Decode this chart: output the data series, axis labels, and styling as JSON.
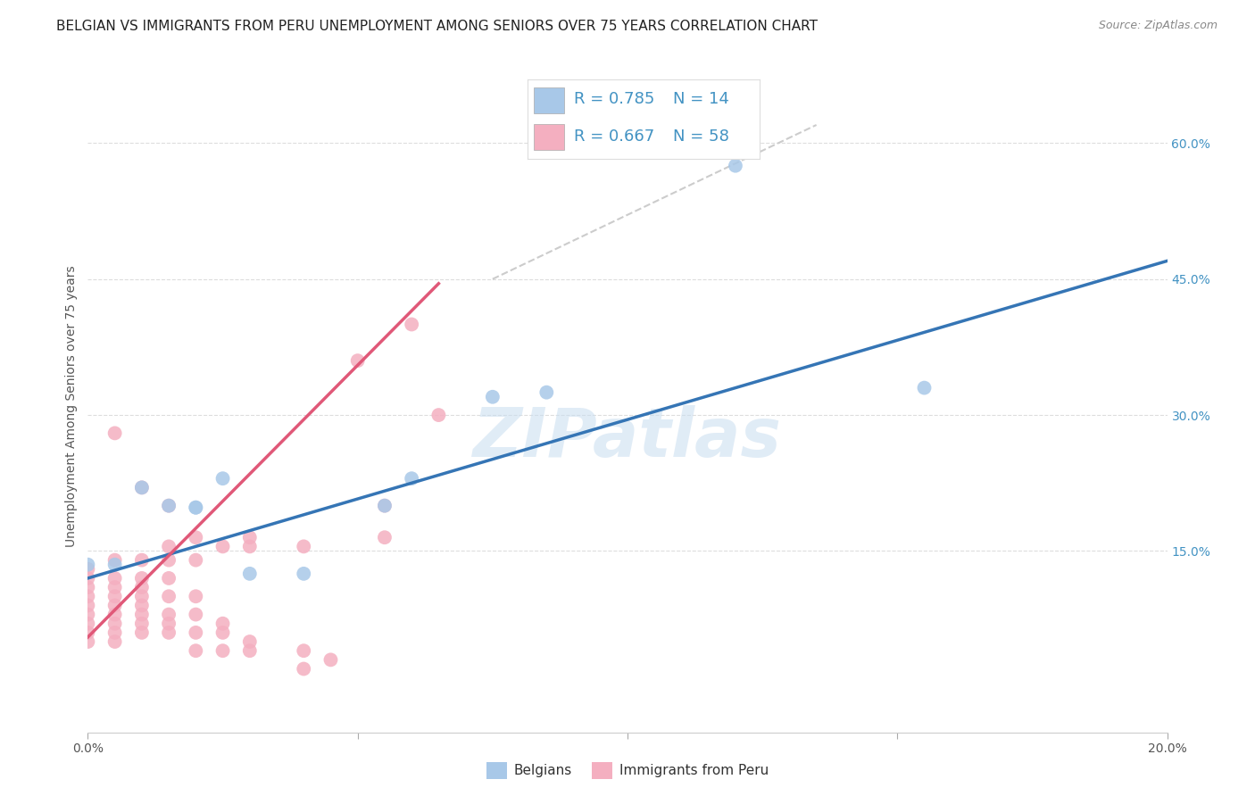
{
  "title": "BELGIAN VS IMMIGRANTS FROM PERU UNEMPLOYMENT AMONG SENIORS OVER 75 YEARS CORRELATION CHART",
  "source": "Source: ZipAtlas.com",
  "ylabel": "Unemployment Among Seniors over 75 years",
  "xlim": [
    0.0,
    0.2
  ],
  "ylim": [
    -0.05,
    0.67
  ],
  "yticks_right": [
    0.15,
    0.3,
    0.45,
    0.6
  ],
  "ytick_labels_right": [
    "15.0%",
    "30.0%",
    "45.0%",
    "60.0%"
  ],
  "blue_color": "#a8c8e8",
  "pink_color": "#f4afc0",
  "blue_line_color": "#3575b5",
  "pink_line_color": "#e05878",
  "diag_color": "#cccccc",
  "legend_color": "#4393c3",
  "blue_scatter": [
    [
      0.0,
      0.135
    ],
    [
      0.005,
      0.135
    ],
    [
      0.01,
      0.22
    ],
    [
      0.015,
      0.2
    ],
    [
      0.02,
      0.198
    ],
    [
      0.02,
      0.198
    ],
    [
      0.025,
      0.23
    ],
    [
      0.03,
      0.125
    ],
    [
      0.04,
      0.125
    ],
    [
      0.055,
      0.2
    ],
    [
      0.06,
      0.23
    ],
    [
      0.075,
      0.32
    ],
    [
      0.085,
      0.325
    ],
    [
      0.12,
      0.575
    ],
    [
      0.155,
      0.33
    ]
  ],
  "pink_scatter": [
    [
      0.0,
      0.05
    ],
    [
      0.0,
      0.06
    ],
    [
      0.0,
      0.07
    ],
    [
      0.0,
      0.08
    ],
    [
      0.0,
      0.09
    ],
    [
      0.0,
      0.1
    ],
    [
      0.0,
      0.11
    ],
    [
      0.0,
      0.12
    ],
    [
      0.0,
      0.13
    ],
    [
      0.005,
      0.05
    ],
    [
      0.005,
      0.06
    ],
    [
      0.005,
      0.07
    ],
    [
      0.005,
      0.08
    ],
    [
      0.005,
      0.09
    ],
    [
      0.005,
      0.1
    ],
    [
      0.005,
      0.11
    ],
    [
      0.005,
      0.12
    ],
    [
      0.005,
      0.14
    ],
    [
      0.005,
      0.28
    ],
    [
      0.01,
      0.06
    ],
    [
      0.01,
      0.07
    ],
    [
      0.01,
      0.08
    ],
    [
      0.01,
      0.09
    ],
    [
      0.01,
      0.1
    ],
    [
      0.01,
      0.11
    ],
    [
      0.01,
      0.12
    ],
    [
      0.01,
      0.14
    ],
    [
      0.01,
      0.22
    ],
    [
      0.015,
      0.06
    ],
    [
      0.015,
      0.07
    ],
    [
      0.015,
      0.08
    ],
    [
      0.015,
      0.1
    ],
    [
      0.015,
      0.12
    ],
    [
      0.015,
      0.14
    ],
    [
      0.015,
      0.155
    ],
    [
      0.015,
      0.2
    ],
    [
      0.02,
      0.04
    ],
    [
      0.02,
      0.06
    ],
    [
      0.02,
      0.08
    ],
    [
      0.02,
      0.1
    ],
    [
      0.02,
      0.14
    ],
    [
      0.02,
      0.165
    ],
    [
      0.025,
      0.04
    ],
    [
      0.025,
      0.06
    ],
    [
      0.025,
      0.07
    ],
    [
      0.025,
      0.155
    ],
    [
      0.03,
      0.04
    ],
    [
      0.03,
      0.05
    ],
    [
      0.03,
      0.155
    ],
    [
      0.03,
      0.165
    ],
    [
      0.04,
      0.02
    ],
    [
      0.04,
      0.04
    ],
    [
      0.04,
      0.155
    ],
    [
      0.045,
      0.03
    ],
    [
      0.05,
      0.36
    ],
    [
      0.055,
      0.165
    ],
    [
      0.055,
      0.2
    ],
    [
      0.06,
      0.4
    ],
    [
      0.065,
      0.3
    ]
  ],
  "blue_line_x": [
    0.0,
    0.2
  ],
  "blue_line_y": [
    0.12,
    0.47
  ],
  "pink_line_x": [
    0.0,
    0.065
  ],
  "pink_line_y": [
    0.055,
    0.445
  ],
  "diag_line_x": [
    0.075,
    0.135
  ],
  "diag_line_y": [
    0.45,
    0.62
  ],
  "watermark": "ZIPatlas",
  "title_fontsize": 11,
  "source_fontsize": 9,
  "ylabel_fontsize": 10,
  "tick_fontsize": 10
}
